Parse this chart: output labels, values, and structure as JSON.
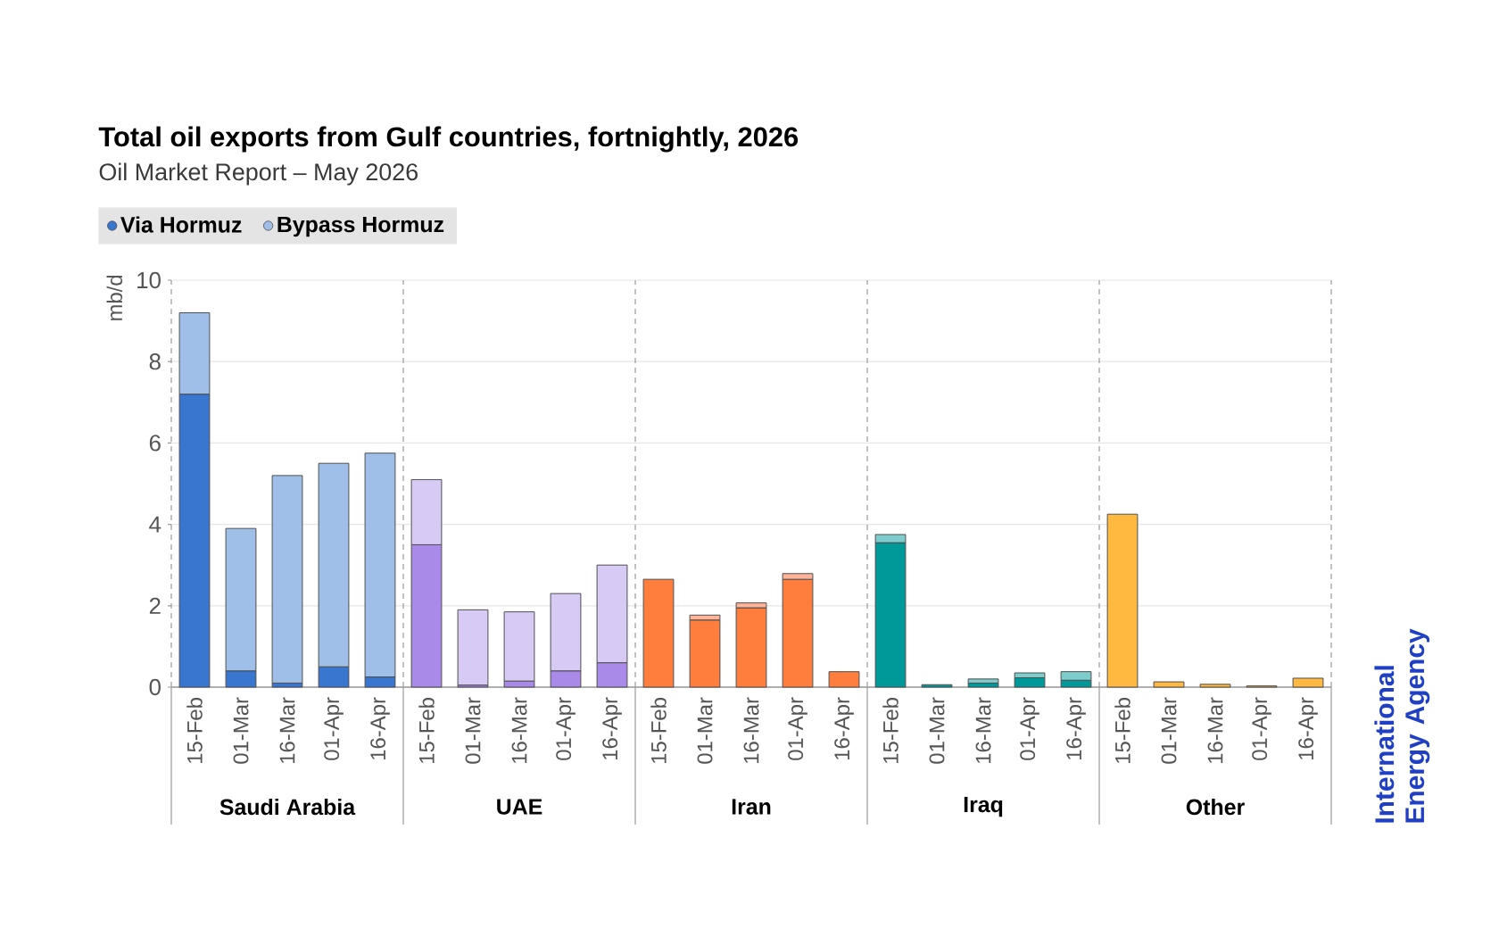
{
  "chart_data": [
    {
      "type": "bar",
      "title": "Total oil exports from Gulf countries, fortnightly, 2026",
      "subtitle": "Oil Market Report – May 2026",
      "xlabel": "Saudi Arabia",
      "ylabel": "mb/d",
      "categories": [
        "15-Feb",
        "01-Mar",
        "16-Mar",
        "01-Apr",
        "16-Apr"
      ],
      "stacked": true,
      "series": [
        {
          "name": "Via Hormuz",
          "color": "#3876d0",
          "values": [
            7.2,
            0.4,
            0.1,
            0.5,
            0.25
          ]
        },
        {
          "name": "Bypass Hormuz",
          "color": "#9fbfe9",
          "values": [
            2.0,
            3.5,
            5.1,
            5.0,
            5.5
          ]
        }
      ],
      "ylim": [
        0,
        10
      ],
      "yticks": [
        0,
        2,
        4,
        6,
        8,
        10
      ],
      "grid": "y",
      "legend": "top left"
    },
    {
      "type": "bar",
      "xlabel": "UAE",
      "categories": [
        "15-Feb",
        "01-Mar",
        "16-Mar",
        "01-Apr",
        "16-Apr"
      ],
      "stacked": true,
      "series": [
        {
          "color": "#a98ae9",
          "values": [
            3.5,
            0.05,
            0.15,
            0.4,
            0.6
          ]
        },
        {
          "color": "#d7cbf5",
          "values": [
            1.6,
            1.85,
            1.7,
            1.9,
            2.4
          ]
        }
      ],
      "ylim": [
        0,
        10
      ],
      "yticks": [
        0,
        2,
        4,
        6,
        8,
        10
      ],
      "grid": "y",
      "tick_labels": "x"
    },
    {
      "type": "bar",
      "xlabel": "Iran",
      "categories": [
        "15-Feb",
        "01-Mar",
        "16-Mar",
        "01-Apr",
        "16-Apr"
      ],
      "stacked": true,
      "series": [
        {
          "color": "#ff7e3e",
          "values": [
            2.65,
            1.65,
            1.95,
            2.65,
            0.38
          ]
        },
        {
          "color": "#ffb49a",
          "values": [
            null,
            0.12,
            0.12,
            0.14,
            null
          ]
        }
      ],
      "ylim": [
        0,
        10
      ],
      "yticks": [
        0,
        2,
        4,
        6,
        8,
        10
      ],
      "grid": "y",
      "tick_labels": "x"
    },
    {
      "type": "bar",
      "xlabel": "Iraq",
      "categories": [
        "15-Feb",
        "01-Mar",
        "16-Mar",
        "01-Apr",
        "16-Apr"
      ],
      "stacked": true,
      "series": [
        {
          "color": "#00999a",
          "values": [
            3.55,
            0.06,
            0.1,
            0.23,
            0.17
          ]
        },
        {
          "color": "#7fcccc",
          "values": [
            0.2,
            null,
            0.1,
            0.12,
            0.21
          ]
        }
      ],
      "ylim": [
        0,
        10
      ],
      "yticks": [
        0,
        2,
        4,
        6,
        8,
        10
      ],
      "grid": "y",
      "tick_labels": "x"
    },
    {
      "type": "bar",
      "xlabel": "Other",
      "categories": [
        "15-Feb",
        "01-Mar",
        "16-Mar",
        "01-Apr",
        "16-Apr"
      ],
      "stacked": true,
      "series": [
        {
          "color": "#ffb940",
          "values": [
            4.25,
            0.13,
            0.07,
            0.03,
            0.22
          ]
        }
      ],
      "ylim": [
        0,
        10
      ],
      "yticks": [
        0,
        2,
        4,
        6,
        8,
        10
      ],
      "grid": "y",
      "tick_labels": "x",
      "annotations": [
        "International Energy Agency"
      ]
    }
  ]
}
